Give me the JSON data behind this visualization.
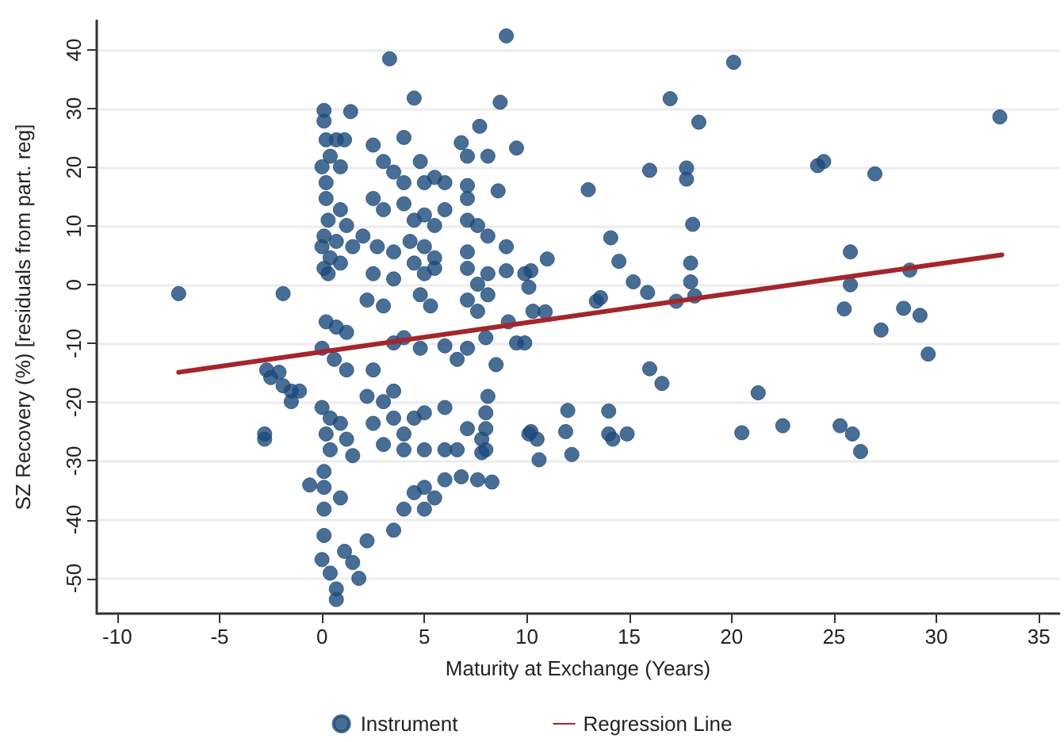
{
  "chart_data": {
    "type": "scatter",
    "xlabel": "Maturity at Exchange (Years)",
    "ylabel": "SZ Recovery (%) [residuals from part. reg]",
    "xlim": [
      -11,
      36
    ],
    "xticks": [
      -10,
      -5,
      0,
      5,
      10,
      15,
      20,
      25,
      30,
      35
    ],
    "ylim": [
      -56,
      45
    ],
    "yticks": [
      -50,
      -40,
      -30,
      -20,
      -10,
      0,
      10,
      20,
      30,
      40
    ],
    "grid": "y",
    "legend": "bottom",
    "marker": "circle",
    "series": [
      {
        "name": "Instrument",
        "color": "#1b4a7a",
        "x": [
          20.1,
          17.0,
          18.4,
          33.1,
          16.0,
          17.8,
          17.8,
          13.0,
          24.2,
          24.5,
          27.0,
          18.1,
          14.1,
          11.0,
          14.5,
          10.2,
          18.0,
          15.2,
          18.0,
          15.9,
          18.2,
          17.3,
          13.4,
          13.6,
          10.9,
          25.8,
          25.8,
          25.5,
          28.7,
          28.4,
          29.2,
          27.3,
          29.6,
          16.0,
          16.6,
          21.3,
          12.0,
          14.0,
          10.2,
          10.5,
          11.9,
          14.0,
          14.2,
          14.9,
          12.2,
          10.6,
          20.5,
          22.5,
          25.3,
          25.9,
          26.3,
          -7.0,
          -1.9,
          -2.7,
          -2.5,
          -2.1,
          -1.9,
          -1.5,
          -1.5,
          -1.1,
          -2.8,
          -2.8,
          -0.6,
          0.1,
          0.1,
          1.4,
          0.2,
          0.7,
          1.1,
          0.4,
          0.0,
          0.9,
          0.2,
          0.2,
          0.9,
          0.3,
          1.2,
          0.1,
          0.7,
          1.5,
          0.4,
          0.9,
          0.1,
          0.3,
          0.0,
          0.2,
          0.7,
          1.2,
          0.0,
          0.6,
          1.2,
          0.0,
          0.4,
          0.9,
          0.2,
          1.2,
          0.4,
          1.5,
          0.1,
          0.1,
          0.9,
          0.1,
          0.1,
          0.0,
          0.4,
          0.7,
          1.5,
          1.8,
          0.7,
          1.1,
          2.2,
          3.5,
          3.3,
          4.5,
          4.0,
          2.5,
          3.0,
          3.5,
          4.0,
          4.8,
          5.0,
          5.5,
          6.0,
          2.5,
          3.0,
          4.0,
          4.5,
          5.0,
          5.5,
          6.0,
          2.0,
          2.7,
          3.5,
          4.3,
          5.0,
          5.5,
          2.5,
          3.5,
          4.5,
          5.0,
          5.5,
          2.2,
          3.0,
          4.8,
          5.3,
          3.5,
          4.0,
          4.8,
          6.0,
          6.6,
          7.1,
          2.5,
          3.5,
          2.2,
          3.0,
          2.5,
          3.5,
          4.5,
          5.0,
          6.0,
          4.0,
          3.0,
          4.0,
          5.0,
          6.0,
          6.6,
          4.5,
          5.0,
          5.5,
          4.0,
          5.0,
          6.0,
          6.8,
          7.6,
          8.3,
          7.1,
          7.8,
          7.8,
          8.1,
          9.0,
          8.7,
          9.5,
          6.8,
          7.1,
          7.7,
          8.1,
          8.6,
          7.1,
          7.1,
          7.1,
          7.6,
          8.1,
          9.0,
          7.1,
          7.1,
          7.6,
          8.1,
          9.0,
          9.9,
          7.1,
          7.6,
          8.1,
          9.1,
          10.1,
          8.0,
          8.5,
          9.5,
          9.9,
          10.3,
          8.0,
          8.0,
          8.0,
          10.1
        ],
        "values": [
          37.9,
          31.7,
          27.7,
          28.6,
          19.5,
          19.9,
          18.0,
          16.2,
          20.3,
          21.0,
          18.9,
          10.3,
          8.0,
          4.4,
          4.0,
          2.4,
          3.7,
          0.5,
          0.5,
          -1.3,
          -1.9,
          -2.8,
          -2.8,
          -2.2,
          -4.6,
          5.6,
          0.0,
          -4.1,
          2.5,
          -4.0,
          -5.2,
          -7.7,
          -11.8,
          -14.3,
          -16.8,
          -18.4,
          -21.4,
          -21.5,
          -25.0,
          -26.3,
          -25.0,
          -25.4,
          -26.3,
          -25.4,
          -28.9,
          -29.8,
          -25.2,
          -24.0,
          -24.0,
          -25.4,
          -28.4,
          -1.5,
          -1.5,
          -14.5,
          -15.8,
          -14.9,
          -17.2,
          -18.1,
          -19.9,
          -18.1,
          -25.4,
          -26.3,
          -34.1,
          29.7,
          27.9,
          29.5,
          24.7,
          24.7,
          24.7,
          21.9,
          20.1,
          20.1,
          17.4,
          14.7,
          12.8,
          11.0,
          10.1,
          8.3,
          7.4,
          6.5,
          4.6,
          3.7,
          2.8,
          1.9,
          6.5,
          -6.3,
          -7.2,
          -8.1,
          -10.8,
          -12.7,
          -14.5,
          -20.9,
          -22.7,
          -23.6,
          -25.4,
          -26.3,
          -28.1,
          -29.1,
          -31.8,
          -34.5,
          -36.3,
          -38.2,
          -42.7,
          -46.8,
          -49.1,
          -51.8,
          -47.3,
          -50.0,
          -53.6,
          -45.4,
          -43.6,
          -41.8,
          38.5,
          31.8,
          25.1,
          23.8,
          21.0,
          19.2,
          17.4,
          21.0,
          17.4,
          18.3,
          17.4,
          14.7,
          12.8,
          13.8,
          11.0,
          11.9,
          10.1,
          12.8,
          8.3,
          6.5,
          5.6,
          7.4,
          6.5,
          4.6,
          1.9,
          1.0,
          3.7,
          1.9,
          2.8,
          -2.6,
          -3.6,
          -1.7,
          -3.6,
          -9.9,
          -9.0,
          -10.8,
          -10.4,
          -12.7,
          -10.8,
          -14.5,
          -18.1,
          -19.0,
          -19.9,
          -23.6,
          -22.7,
          -22.7,
          -21.8,
          -20.9,
          -25.4,
          -27.2,
          -28.1,
          -28.1,
          -28.1,
          -28.1,
          -35.4,
          -34.5,
          -36.3,
          -38.2,
          -38.2,
          -33.2,
          -32.7,
          -33.2,
          -33.6,
          -24.5,
          -26.3,
          -28.6,
          -19.0,
          42.4,
          31.1,
          23.3,
          24.2,
          21.9,
          27.0,
          21.9,
          16.0,
          16.9,
          14.7,
          11.0,
          10.1,
          8.3,
          6.5,
          5.6,
          2.8,
          0.1,
          1.9,
          2.4,
          1.9,
          -2.6,
          -4.5,
          -1.7,
          -6.3,
          -0.4,
          -9.0,
          -13.6,
          -9.9,
          -9.9,
          -4.5,
          -21.8,
          -24.5,
          -28.1,
          -25.4
        ]
      },
      {
        "name": "Regression Line",
        "type": "line",
        "color": "#a3262b",
        "marker": "none",
        "line_style": "solid",
        "x": [
          -7.0,
          33.2
        ],
        "values": [
          -14.9,
          5.1
        ]
      }
    ]
  }
}
